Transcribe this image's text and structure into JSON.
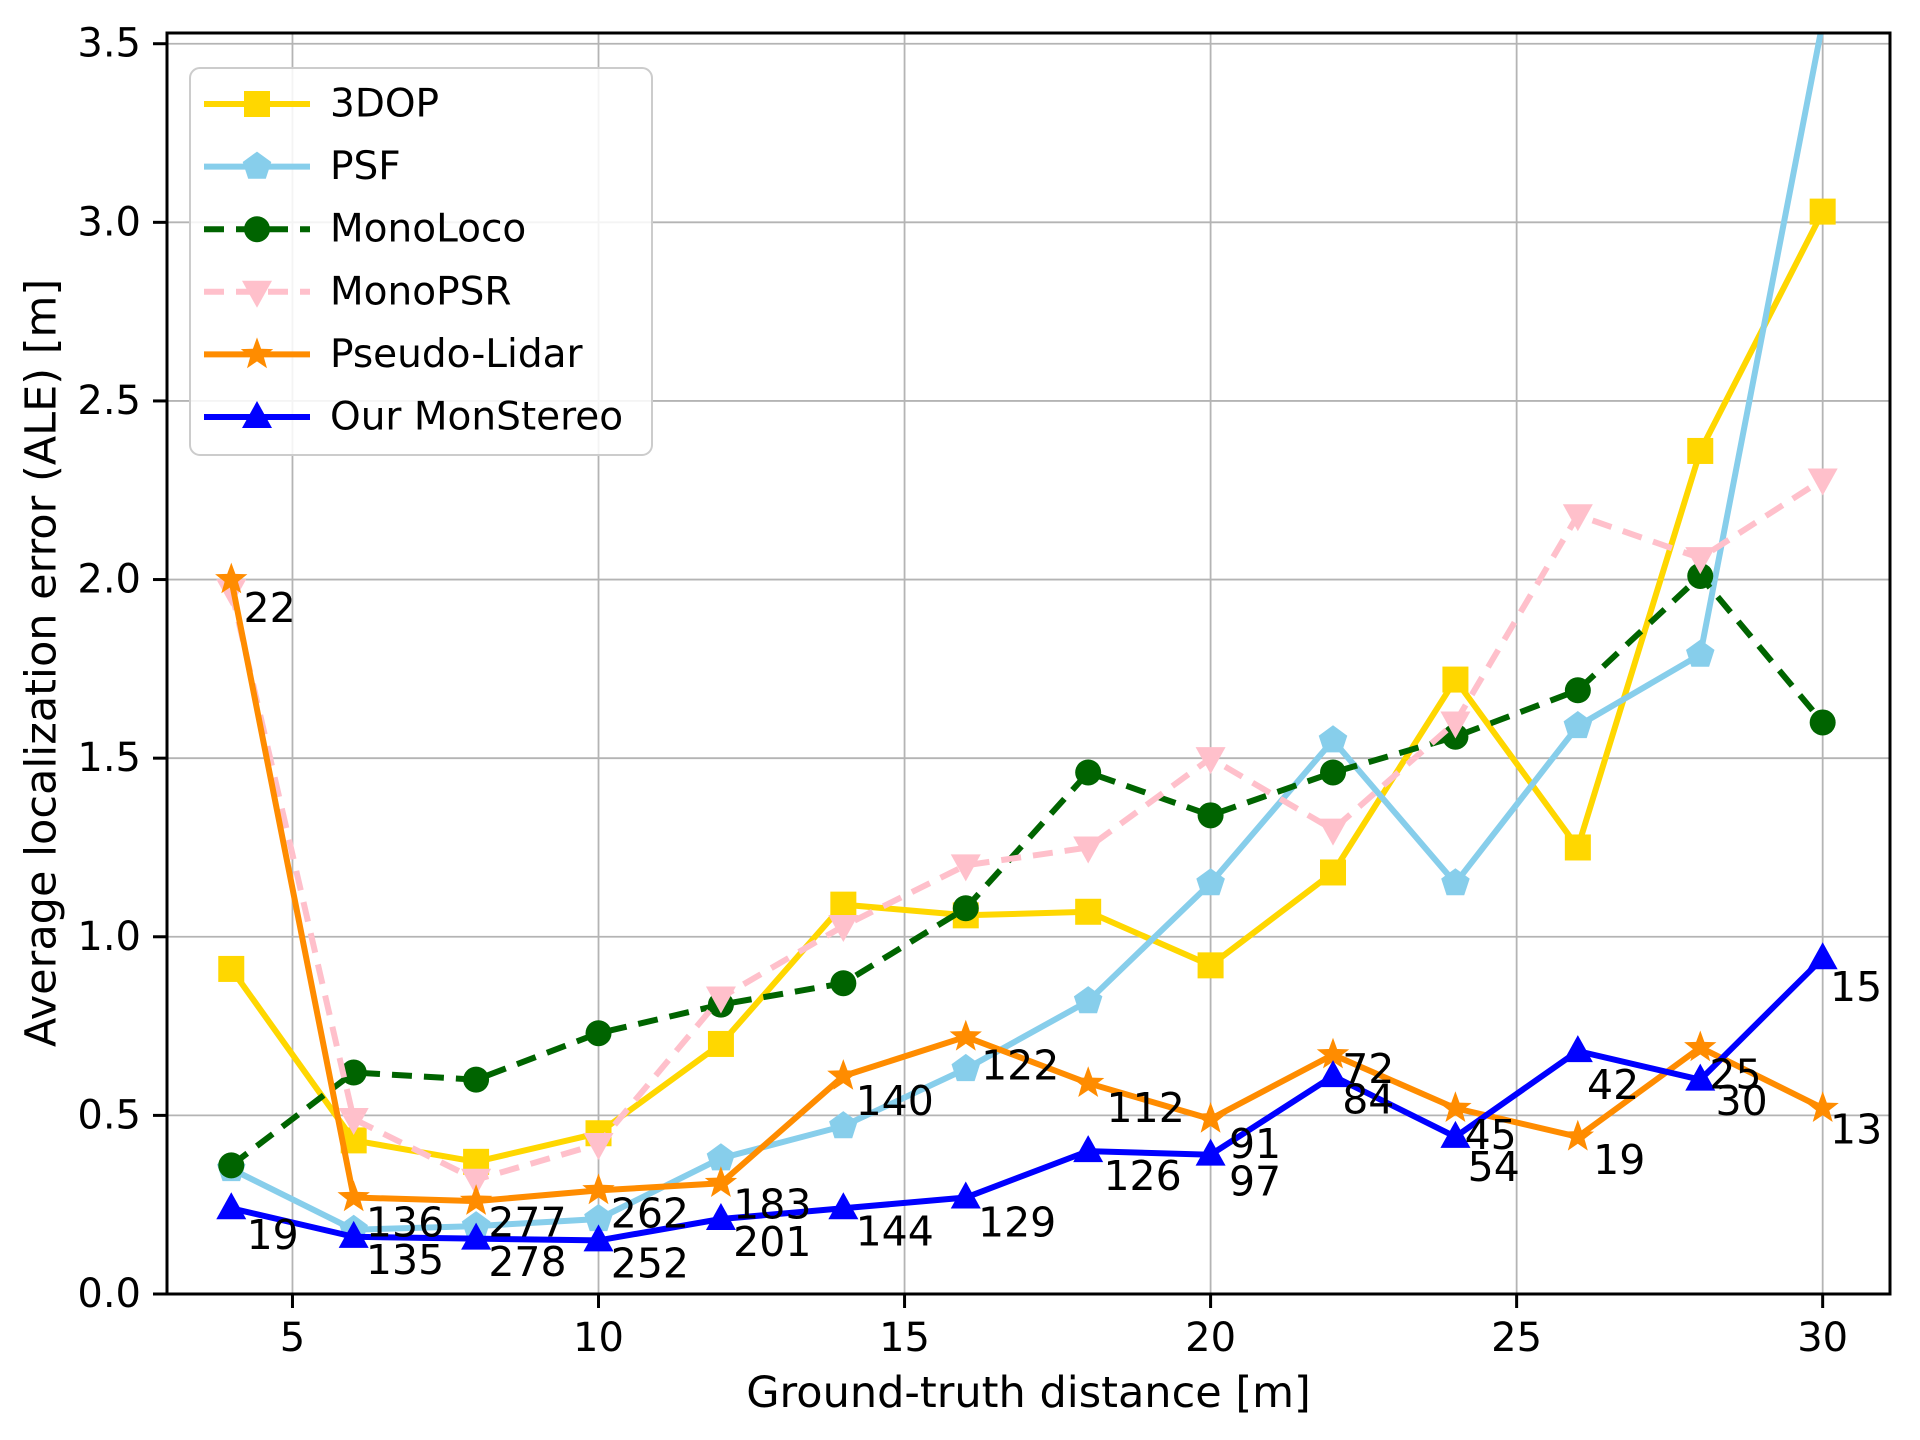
{
  "chart_data": {
    "type": "line",
    "title": "",
    "xlabel": "Ground-truth distance [m]",
    "ylabel": "Average localization error (ALE) [m]",
    "xlim": [
      2.95,
      31.1
    ],
    "ylim": [
      0,
      3.53
    ],
    "xticks": [
      5,
      10,
      15,
      20,
      25,
      30
    ],
    "yticks": [
      0.0,
      0.5,
      1.0,
      1.5,
      2.0,
      2.5,
      3.0,
      3.5
    ],
    "grid": true,
    "grid_color": "#b4b4b4",
    "legend_position": "upper-left",
    "x": [
      4,
      6,
      8,
      10,
      12,
      14,
      16,
      18,
      20,
      22,
      24,
      26,
      28,
      30
    ],
    "series": [
      {
        "name": "3DOP",
        "color": "#FFD700",
        "marker": "square",
        "line_style": "solid",
        "values": [
          0.91,
          0.43,
          0.37,
          0.45,
          0.7,
          1.09,
          1.06,
          1.07,
          0.92,
          1.18,
          1.72,
          1.25,
          2.36,
          3.03
        ]
      },
      {
        "name": "PSF",
        "color": "#87CEEB",
        "marker": "pentagon",
        "line_style": "solid",
        "values": [
          0.35,
          0.18,
          0.19,
          0.21,
          0.38,
          0.47,
          0.63,
          0.82,
          1.15,
          1.55,
          1.15,
          1.59,
          1.79,
          3.56
        ]
      },
      {
        "name": "MonoLoco",
        "color": "#006400",
        "marker": "circle",
        "line_style": "dashed",
        "values": [
          0.36,
          0.62,
          0.6,
          0.73,
          0.81,
          0.87,
          1.08,
          1.46,
          1.34,
          1.46,
          1.56,
          1.69,
          2.01,
          1.6
        ]
      },
      {
        "name": "MonoPSR",
        "color": "#FFC0CB",
        "marker": "triangle-down",
        "line_style": "dashed",
        "values": [
          1.97,
          0.49,
          0.32,
          0.42,
          0.83,
          1.03,
          1.2,
          1.25,
          1.5,
          1.3,
          1.6,
          2.18,
          2.06,
          2.28
        ]
      },
      {
        "name": "Pseudo-Lidar",
        "color": "#FF8C00",
        "marker": "star",
        "line_style": "solid",
        "values": [
          2.0,
          0.27,
          0.26,
          0.29,
          0.31,
          0.61,
          0.72,
          0.59,
          0.49,
          0.67,
          0.52,
          0.44,
          0.69,
          0.52
        ]
      },
      {
        "name": "Our MonStereo",
        "color": "#0000FF",
        "marker": "triangle-up",
        "line_style": "solid",
        "values": [
          0.24,
          0.16,
          0.155,
          0.15,
          0.21,
          0.24,
          0.27,
          0.4,
          0.39,
          0.61,
          0.44,
          0.68,
          0.6,
          0.94
        ]
      }
    ],
    "annotations": [
      {
        "x": 4.2,
        "y": 1.92,
        "text": "22"
      },
      {
        "x": 4.25,
        "y": 0.165,
        "text": "19"
      },
      {
        "x": 6.2,
        "y": 0.2,
        "text": "136"
      },
      {
        "x": 6.2,
        "y": 0.095,
        "text": "135"
      },
      {
        "x": 8.2,
        "y": 0.2,
        "text": "277"
      },
      {
        "x": 8.2,
        "y": 0.09,
        "text": "278"
      },
      {
        "x": 10.2,
        "y": 0.225,
        "text": "262"
      },
      {
        "x": 10.2,
        "y": 0.085,
        "text": "252"
      },
      {
        "x": 12.2,
        "y": 0.25,
        "text": "183"
      },
      {
        "x": 12.2,
        "y": 0.145,
        "text": "201"
      },
      {
        "x": 14.2,
        "y": 0.54,
        "text": "140"
      },
      {
        "x": 14.2,
        "y": 0.175,
        "text": "144"
      },
      {
        "x": 16.25,
        "y": 0.64,
        "text": "122"
      },
      {
        "x": 16.2,
        "y": 0.2,
        "text": "129"
      },
      {
        "x": 18.3,
        "y": 0.52,
        "text": "112"
      },
      {
        "x": 18.25,
        "y": 0.33,
        "text": "126"
      },
      {
        "x": 20.3,
        "y": 0.42,
        "text": "91"
      },
      {
        "x": 20.3,
        "y": 0.315,
        "text": "97"
      },
      {
        "x": 22.15,
        "y": 0.63,
        "text": "72"
      },
      {
        "x": 22.15,
        "y": 0.545,
        "text": "84"
      },
      {
        "x": 24.15,
        "y": 0.445,
        "text": "45"
      },
      {
        "x": 24.2,
        "y": 0.355,
        "text": "54"
      },
      {
        "x": 26.15,
        "y": 0.585,
        "text": "42"
      },
      {
        "x": 26.25,
        "y": 0.375,
        "text": "19"
      },
      {
        "x": 28.15,
        "y": 0.615,
        "text": "25"
      },
      {
        "x": 28.25,
        "y": 0.54,
        "text": "30"
      },
      {
        "x": 30.12,
        "y": 0.86,
        "text": "15"
      },
      {
        "x": 30.12,
        "y": 0.46,
        "text": "13"
      }
    ]
  }
}
